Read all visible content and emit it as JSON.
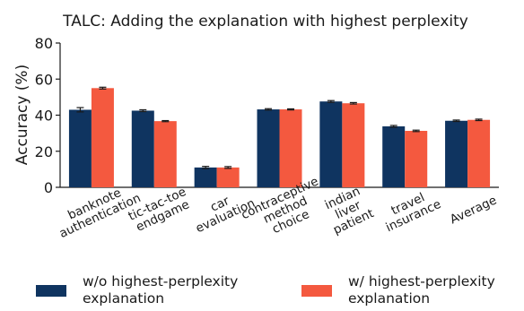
{
  "chart_data": {
    "type": "bar",
    "title": "TALC: Adding the explanation with highest perplexity",
    "xlabel": "",
    "ylabel": "Accuracy (%)",
    "ylim": [
      0,
      80
    ],
    "yticks": [
      0,
      20,
      40,
      60,
      80
    ],
    "grid": false,
    "legend_position": "bottom",
    "categories": [
      "banknote\nauthentication",
      "tic-tac-toe\nendgame",
      "car\nevaluation",
      "contraceptive\nmethod\nchoice",
      "indian\nliver\npatient",
      "travel\ninsurance",
      "Average"
    ],
    "series": [
      {
        "name": "w/o highest-perplexity\nexplanation",
        "color": "#0f3460",
        "values": [
          43.0,
          42.5,
          11.0,
          43.2,
          47.6,
          33.8,
          36.9
        ],
        "errors": [
          1.2,
          0.5,
          0.6,
          0.4,
          0.5,
          0.5,
          0.4
        ]
      },
      {
        "name": "w/ highest-perplexity\nexplanation",
        "color": "#f4593f",
        "values": [
          55.0,
          36.7,
          11.0,
          43.2,
          46.6,
          31.3,
          37.4
        ],
        "errors": [
          0.5,
          0.3,
          0.5,
          0.3,
          0.4,
          0.4,
          0.4
        ]
      }
    ]
  }
}
